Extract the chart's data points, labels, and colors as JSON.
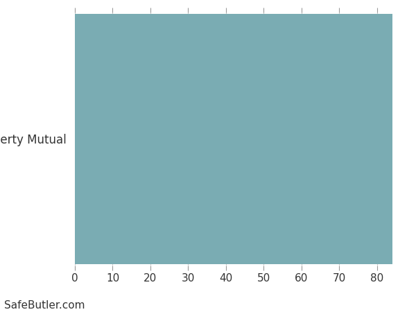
{
  "categories": [
    "Liberty Mutual"
  ],
  "values": [
    84
  ],
  "bar_color": "#7AACB3",
  "background_color": "#ffffff",
  "xlim": [
    0,
    87
  ],
  "xticks": [
    0,
    10,
    20,
    30,
    40,
    50,
    60,
    70,
    80
  ],
  "grid_color": "#cccccc",
  "tick_color": "#333333",
  "label_fontsize": 12,
  "tick_fontsize": 11,
  "watermark": "SafeButler.com",
  "watermark_fontsize": 11
}
